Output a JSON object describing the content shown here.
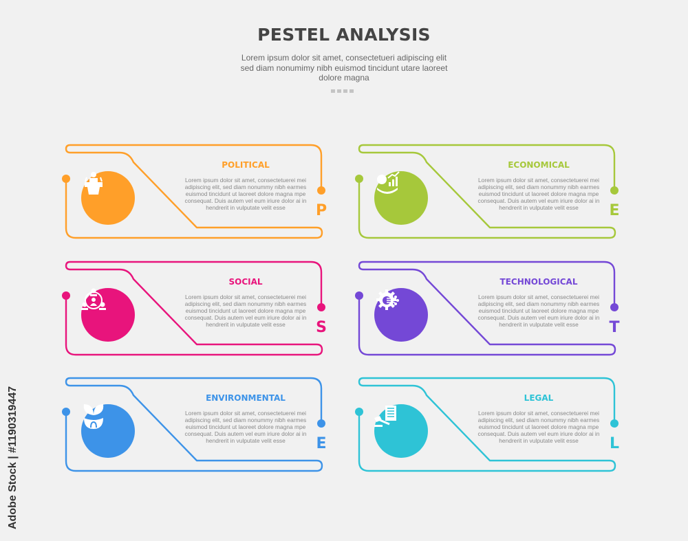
{
  "header": {
    "title": "PESTEL ANALYSIS",
    "subtitle": "Lorem ipsum dolor sit amet, consectetueri adipiscing elit sed diam nonumimy nibh euismod tincidunt utare laoreet dolore magna"
  },
  "cards": [
    {
      "title": "POLITICAL",
      "letter": "P",
      "color": "#FF9F29",
      "icon": "podium-speaker-icon",
      "body": "Lorem ipsum dolor sit amet, consectetuerei mei adipiscing elit, sed diam nonummy nibh earmes euismod tincidunt ut laoreet dolore magna mpe consequat. Duis autem vel eum iriure dolor ai in hendrerit in vulputate velit esse"
    },
    {
      "title": "ECONOMICAL",
      "letter": "E",
      "color": "#A6C83B",
      "icon": "money-growth-chart-icon",
      "body": "Lorem ipsum dolor sit amet, consectetuerei mei adipiscing elit, sed diam nonummy nibh earmes euismod tincidunt ut laoreet dolore magna mpe consequat. Duis autem vel eum iriure dolor ai in hendrerit in vulputate velit esse"
    },
    {
      "title": "SOCIAL",
      "letter": "S",
      "color": "#E8147C",
      "icon": "people-network-icon",
      "body": "Lorem ipsum dolor sit amet, consectetuerei mei adipiscing elit, sed diam nonummy nibh earmes euismod tincidunt ut laoreet dolore magna mpe consequat. Duis autem vel eum iriure dolor ai in hendrerit in vulputate velit esse"
    },
    {
      "title": "TECHNOLOGICAL",
      "letter": "T",
      "color": "#7448D6",
      "icon": "gear-circuit-icon",
      "body": "Lorem ipsum dolor sit amet, consectetuerei mei adipiscing elit, sed diam nonummy nibh earmes euismod tincidunt ut laoreet dolore magna mpe consequat. Duis autem vel eum iriure dolor ai in hendrerit in vulputate velit esse"
    },
    {
      "title": "ENVIRONMENTAL",
      "letter": "E",
      "color": "#3D93E8",
      "icon": "plant-hands-icon",
      "body": "Lorem ipsum dolor sit amet, consectetuerei mei adipiscing elit, sed diam nonummy nibh earmes euismod tincidunt ut laoreet dolore magna mpe consequat. Duis autem vel eum iriure dolor ai in hendrerit in vulputate velit esse"
    },
    {
      "title": "LEGAL",
      "letter": "L",
      "color": "#2EC3D6",
      "icon": "gavel-document-icon",
      "body": "Lorem ipsum dolor sit amet, consectetuerei mei adipiscing elit, sed diam nonummy nibh earmes euismod tincidunt ut laoreet dolore magna mpe consequat. Duis autem vel eum iriure dolor ai in hendrerit in vulputate velit esse"
    }
  ],
  "watermark": "Adobe Stock | #1190319447"
}
